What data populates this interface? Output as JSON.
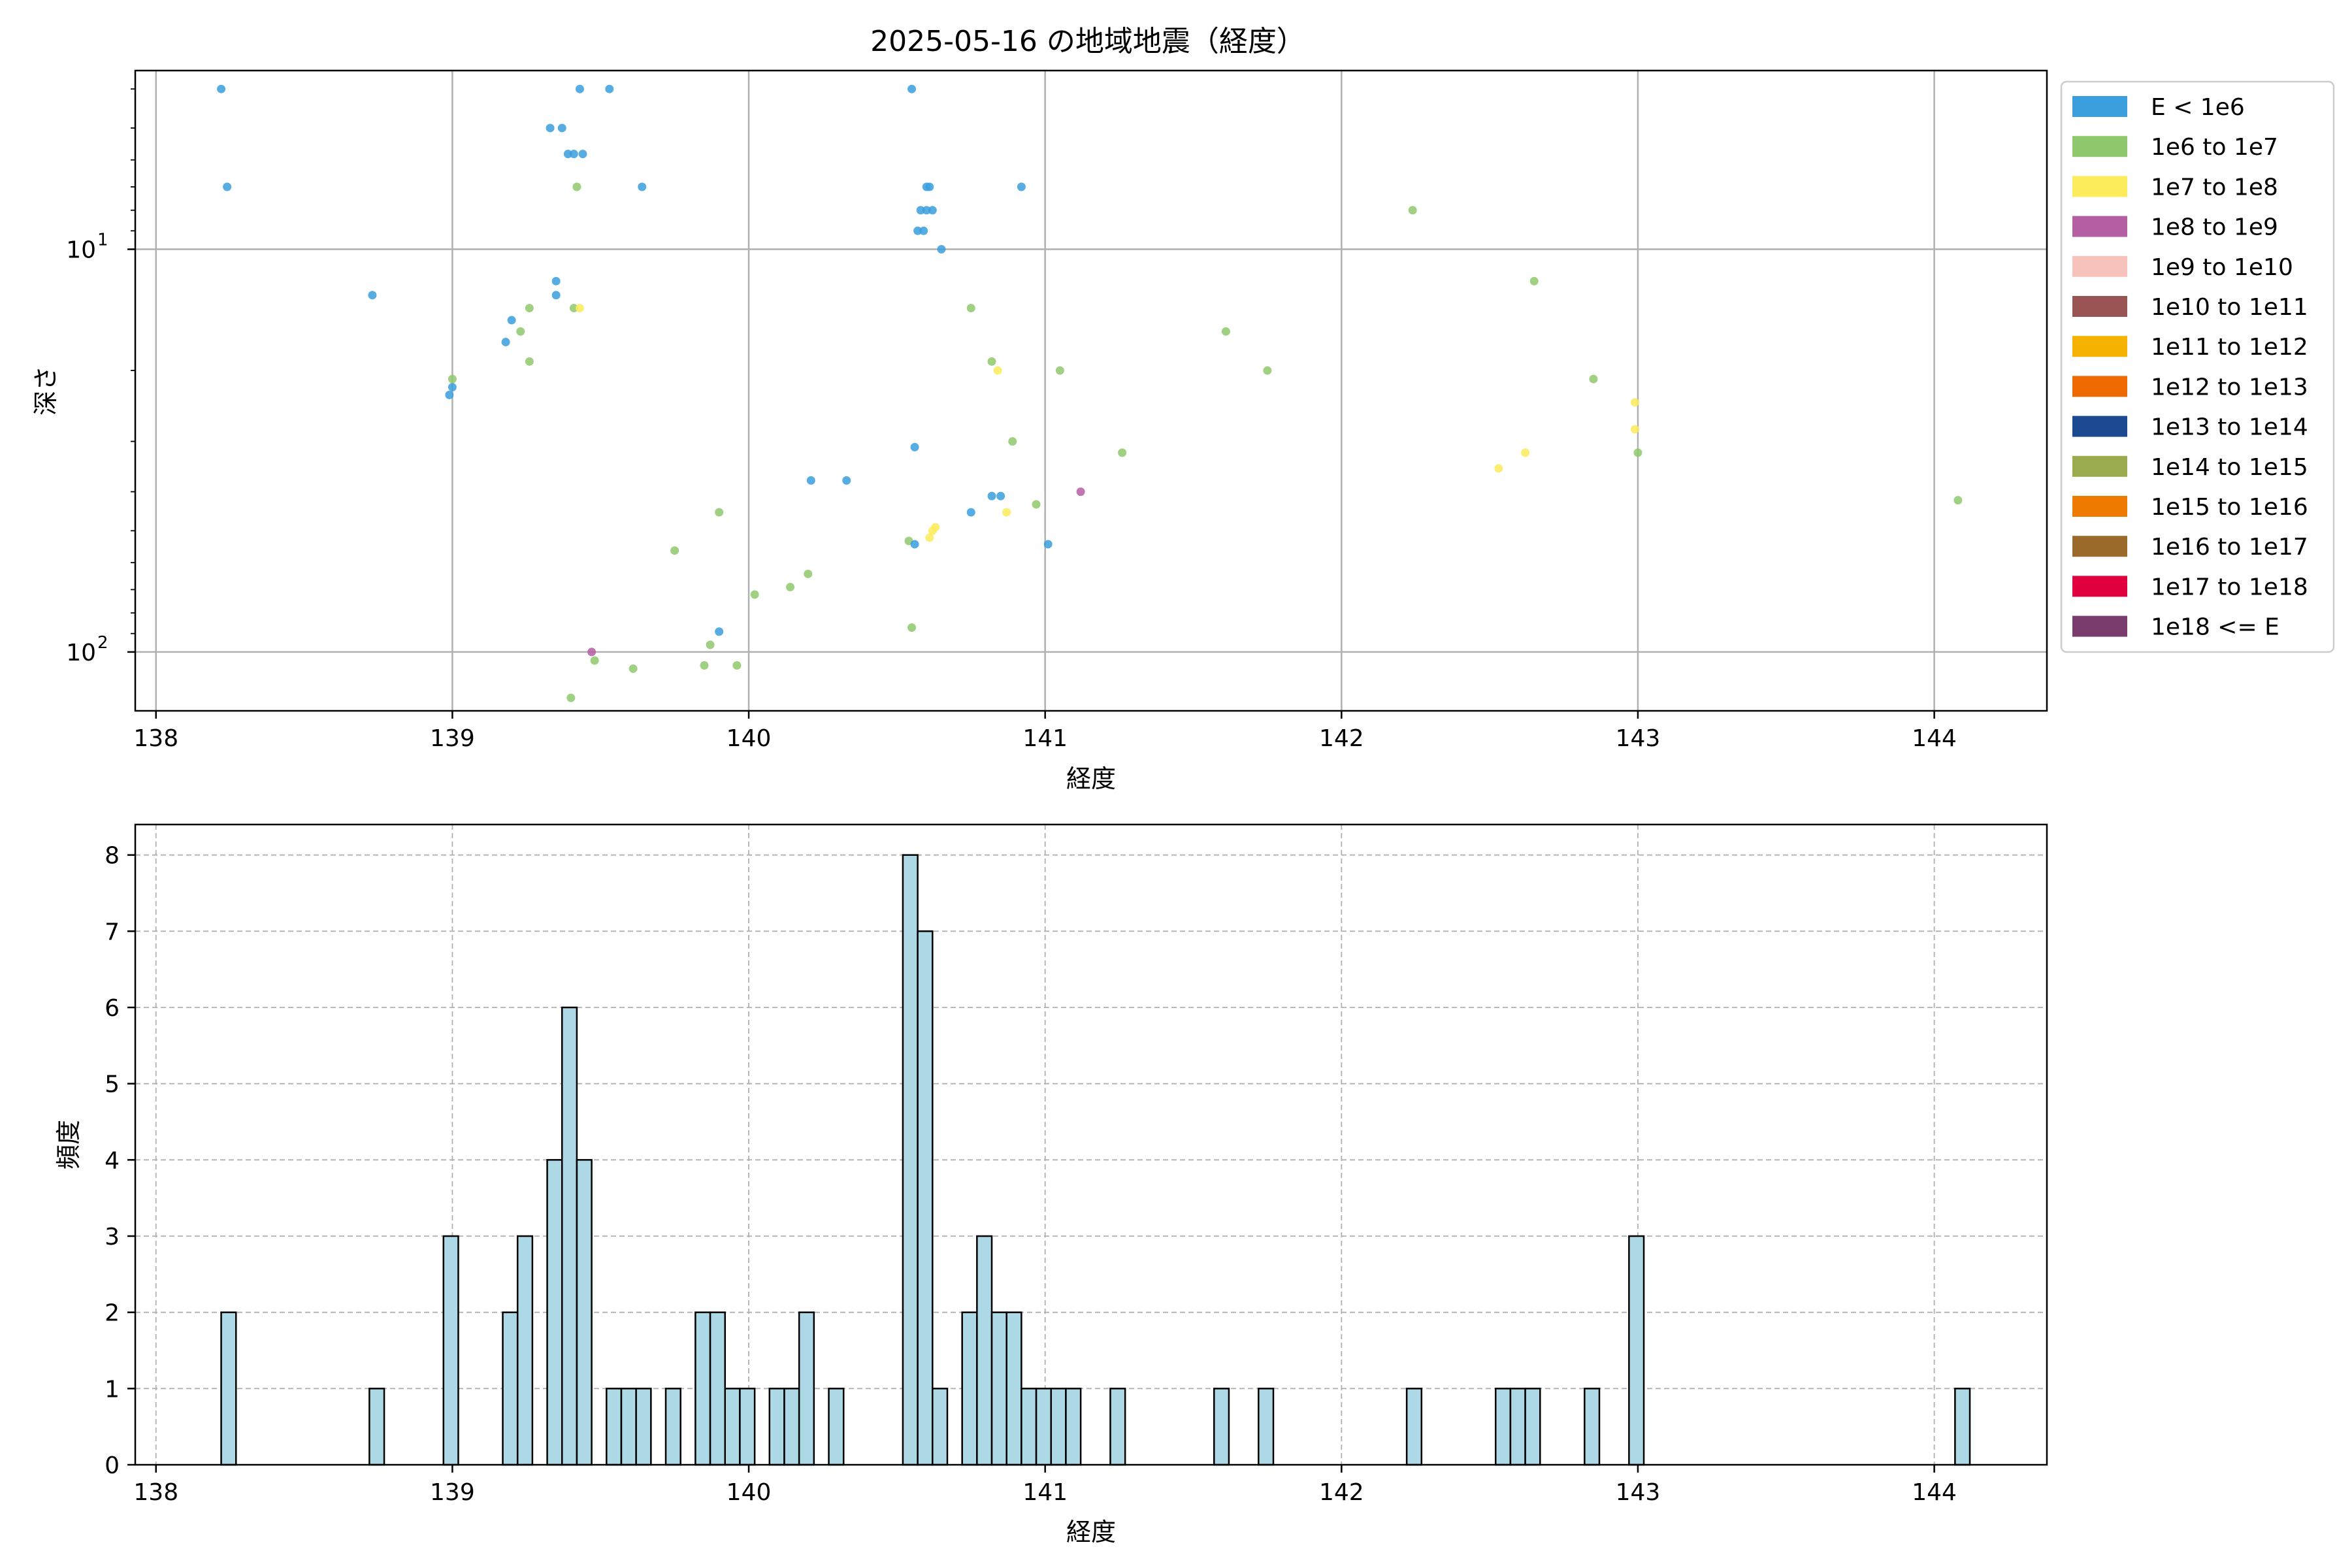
{
  "figure_title": "2025-05-16 の地域地震（経度）",
  "legend": {
    "entries": [
      {
        "label": "E < 1e6",
        "color": "#3a9fdc"
      },
      {
        "label": "1e6 to 1e7",
        "color": "#8fc86c"
      },
      {
        "label": "1e7 to 1e8",
        "color": "#fceb5b"
      },
      {
        "label": "1e8 to 1e9",
        "color": "#b45ea3"
      },
      {
        "label": "1e9 to 1e10",
        "color": "#f6c2bb"
      },
      {
        "label": "1e10 to 1e11",
        "color": "#985452"
      },
      {
        "label": "1e11 to 1e12",
        "color": "#f5b200"
      },
      {
        "label": "1e12 to 1e13",
        "color": "#ee6a00"
      },
      {
        "label": "1e13 to 1e14",
        "color": "#1c4a90"
      },
      {
        "label": "1e14 to 1e15",
        "color": "#9aab4d"
      },
      {
        "label": "1e15 to 1e16",
        "color": "#ee7b00"
      },
      {
        "label": "1e16 to 1e17",
        "color": "#9a6a2a"
      },
      {
        "label": "1e17 to 1e18",
        "color": "#e0003e"
      },
      {
        "label": "1e18 <= E",
        "color": "#7a3c6c"
      }
    ]
  },
  "chart_data": [
    {
      "type": "scatter",
      "xlabel": "経度",
      "ylabel": "深さ",
      "yscale": "log",
      "yinverted": true,
      "xlim": [
        137.93,
        144.38
      ],
      "ylim": [
        3.6,
        140
      ],
      "xticks": [
        {
          "value": 138,
          "label": "138"
        },
        {
          "value": 139,
          "label": "139"
        },
        {
          "value": 140,
          "label": "140"
        },
        {
          "value": 141,
          "label": "141"
        },
        {
          "value": 142,
          "label": "142"
        },
        {
          "value": 143,
          "label": "143"
        },
        {
          "value": 144,
          "label": "144"
        }
      ],
      "yticks": [
        {
          "value": 10,
          "label": "10",
          "exp": "1"
        },
        {
          "value": 100,
          "label": "10",
          "exp": "2"
        }
      ],
      "grid": true,
      "legend_position": "outside-right",
      "points": [
        {
          "x": 138.22,
          "y": 4.0,
          "c": 0
        },
        {
          "x": 138.24,
          "y": 7.0,
          "c": 0
        },
        {
          "x": 138.73,
          "y": 13.0,
          "c": 0
        },
        {
          "x": 138.99,
          "y": 23.0,
          "c": 0
        },
        {
          "x": 139.0,
          "y": 22.0,
          "c": 0
        },
        {
          "x": 139.0,
          "y": 21.0,
          "c": 1
        },
        {
          "x": 139.18,
          "y": 17.0,
          "c": 0
        },
        {
          "x": 139.2,
          "y": 15.0,
          "c": 0
        },
        {
          "x": 139.23,
          "y": 16.0,
          "c": 1
        },
        {
          "x": 139.26,
          "y": 14.0,
          "c": 1
        },
        {
          "x": 139.26,
          "y": 19.0,
          "c": 1
        },
        {
          "x": 139.33,
          "y": 5.0,
          "c": 0
        },
        {
          "x": 139.35,
          "y": 12.0,
          "c": 0
        },
        {
          "x": 139.35,
          "y": 13.0,
          "c": 0
        },
        {
          "x": 139.37,
          "y": 5.0,
          "c": 0
        },
        {
          "x": 139.39,
          "y": 5.8,
          "c": 0
        },
        {
          "x": 139.41,
          "y": 5.8,
          "c": 0
        },
        {
          "x": 139.41,
          "y": 14.0,
          "c": 1
        },
        {
          "x": 139.42,
          "y": 7.0,
          "c": 1
        },
        {
          "x": 139.43,
          "y": 14.0,
          "c": 2
        },
        {
          "x": 139.43,
          "y": 4.0,
          "c": 0
        },
        {
          "x": 139.44,
          "y": 5.8,
          "c": 0
        },
        {
          "x": 139.4,
          "y": 130.0,
          "c": 1
        },
        {
          "x": 139.47,
          "y": 100.0,
          "c": 3
        },
        {
          "x": 139.48,
          "y": 105.0,
          "c": 1
        },
        {
          "x": 139.53,
          "y": 4.0,
          "c": 0
        },
        {
          "x": 139.61,
          "y": 110.0,
          "c": 1
        },
        {
          "x": 139.64,
          "y": 7.0,
          "c": 0
        },
        {
          "x": 139.75,
          "y": 56.0,
          "c": 1
        },
        {
          "x": 139.85,
          "y": 108.0,
          "c": 1
        },
        {
          "x": 139.87,
          "y": 96.0,
          "c": 1
        },
        {
          "x": 139.9,
          "y": 89.0,
          "c": 0
        },
        {
          "x": 139.9,
          "y": 45.0,
          "c": 1
        },
        {
          "x": 139.96,
          "y": 108.0,
          "c": 1
        },
        {
          "x": 140.02,
          "y": 72.0,
          "c": 1
        },
        {
          "x": 140.14,
          "y": 69.0,
          "c": 1
        },
        {
          "x": 140.2,
          "y": 64.0,
          "c": 1
        },
        {
          "x": 140.21,
          "y": 37.5,
          "c": 0
        },
        {
          "x": 140.33,
          "y": 37.5,
          "c": 0
        },
        {
          "x": 140.54,
          "y": 53.0,
          "c": 1
        },
        {
          "x": 140.55,
          "y": 4.0,
          "c": 0
        },
        {
          "x": 140.55,
          "y": 87.0,
          "c": 1
        },
        {
          "x": 140.56,
          "y": 31.0,
          "c": 0
        },
        {
          "x": 140.56,
          "y": 54.0,
          "c": 0
        },
        {
          "x": 140.57,
          "y": 9.0,
          "c": 0
        },
        {
          "x": 140.58,
          "y": 8.0,
          "c": 0
        },
        {
          "x": 140.59,
          "y": 9.0,
          "c": 0
        },
        {
          "x": 140.6,
          "y": 8.0,
          "c": 0
        },
        {
          "x": 140.6,
          "y": 7.0,
          "c": 0
        },
        {
          "x": 140.61,
          "y": 52.0,
          "c": 2
        },
        {
          "x": 140.62,
          "y": 50.0,
          "c": 2
        },
        {
          "x": 140.63,
          "y": 49.0,
          "c": 2
        },
        {
          "x": 140.61,
          "y": 7.0,
          "c": 0
        },
        {
          "x": 140.62,
          "y": 8.0,
          "c": 0
        },
        {
          "x": 140.65,
          "y": 10.0,
          "c": 0
        },
        {
          "x": 140.75,
          "y": 14.0,
          "c": 1
        },
        {
          "x": 140.75,
          "y": 45.0,
          "c": 0
        },
        {
          "x": 140.82,
          "y": 19.0,
          "c": 1
        },
        {
          "x": 140.82,
          "y": 41.0,
          "c": 0
        },
        {
          "x": 140.84,
          "y": 20.0,
          "c": 2
        },
        {
          "x": 140.85,
          "y": 41.0,
          "c": 0
        },
        {
          "x": 140.87,
          "y": 45.0,
          "c": 2
        },
        {
          "x": 140.89,
          "y": 30.0,
          "c": 1
        },
        {
          "x": 140.92,
          "y": 7.0,
          "c": 0
        },
        {
          "x": 140.97,
          "y": 43.0,
          "c": 1
        },
        {
          "x": 141.01,
          "y": 54.0,
          "c": 0
        },
        {
          "x": 141.05,
          "y": 20.0,
          "c": 1
        },
        {
          "x": 141.12,
          "y": 40.0,
          "c": 3
        },
        {
          "x": 141.26,
          "y": 32.0,
          "c": 1
        },
        {
          "x": 141.61,
          "y": 16.0,
          "c": 1
        },
        {
          "x": 141.75,
          "y": 20.0,
          "c": 1
        },
        {
          "x": 142.24,
          "y": 8.0,
          "c": 1
        },
        {
          "x": 142.53,
          "y": 35.0,
          "c": 2
        },
        {
          "x": 142.62,
          "y": 32.0,
          "c": 2
        },
        {
          "x": 142.65,
          "y": 12.0,
          "c": 1
        },
        {
          "x": 142.85,
          "y": 21.0,
          "c": 1
        },
        {
          "x": 142.99,
          "y": 24.0,
          "c": 2
        },
        {
          "x": 142.99,
          "y": 28.0,
          "c": 2
        },
        {
          "x": 143.0,
          "y": 32.0,
          "c": 1
        },
        {
          "x": 144.08,
          "y": 42.0,
          "c": 1
        }
      ]
    },
    {
      "type": "bar",
      "subtype": "histogram",
      "xlabel": "経度",
      "ylabel": "頻度",
      "xlim": [
        137.93,
        144.38
      ],
      "ylim": [
        0,
        8.4
      ],
      "bin_width": 0.05,
      "color": "#add8e6",
      "edgecolor": "#000000",
      "grid": "dashed",
      "xticks": [
        {
          "value": 138,
          "label": "138"
        },
        {
          "value": 139,
          "label": "139"
        },
        {
          "value": 140,
          "label": "140"
        },
        {
          "value": 141,
          "label": "141"
        },
        {
          "value": 142,
          "label": "142"
        },
        {
          "value": 143,
          "label": "143"
        },
        {
          "value": 144,
          "label": "144"
        }
      ],
      "yticks": [
        {
          "value": 0,
          "label": "0"
        },
        {
          "value": 1,
          "label": "1"
        },
        {
          "value": 2,
          "label": "2"
        },
        {
          "value": 3,
          "label": "3"
        },
        {
          "value": 4,
          "label": "4"
        },
        {
          "value": 5,
          "label": "5"
        },
        {
          "value": 6,
          "label": "6"
        },
        {
          "value": 7,
          "label": "7"
        },
        {
          "value": 8,
          "label": "8"
        }
      ],
      "bins": [
        {
          "x0": 138.22,
          "count": 2
        },
        {
          "x0": 138.72,
          "count": 1
        },
        {
          "x0": 138.97,
          "count": 3
        },
        {
          "x0": 139.17,
          "count": 2
        },
        {
          "x0": 139.22,
          "count": 3
        },
        {
          "x0": 139.32,
          "count": 4
        },
        {
          "x0": 139.37,
          "count": 6
        },
        {
          "x0": 139.42,
          "count": 4
        },
        {
          "x0": 139.52,
          "count": 1
        },
        {
          "x0": 139.57,
          "count": 1
        },
        {
          "x0": 139.62,
          "count": 1
        },
        {
          "x0": 139.72,
          "count": 1
        },
        {
          "x0": 139.82,
          "count": 2
        },
        {
          "x0": 139.87,
          "count": 2
        },
        {
          "x0": 139.92,
          "count": 1
        },
        {
          "x0": 139.97,
          "count": 1
        },
        {
          "x0": 140.07,
          "count": 1
        },
        {
          "x0": 140.12,
          "count": 1
        },
        {
          "x0": 140.17,
          "count": 2
        },
        {
          "x0": 140.27,
          "count": 1
        },
        {
          "x0": 140.52,
          "count": 8
        },
        {
          "x0": 140.57,
          "count": 7
        },
        {
          "x0": 140.62,
          "count": 1
        },
        {
          "x0": 140.72,
          "count": 2
        },
        {
          "x0": 140.77,
          "count": 3
        },
        {
          "x0": 140.82,
          "count": 2
        },
        {
          "x0": 140.87,
          "count": 2
        },
        {
          "x0": 140.92,
          "count": 1
        },
        {
          "x0": 140.97,
          "count": 1
        },
        {
          "x0": 141.02,
          "count": 1
        },
        {
          "x0": 141.07,
          "count": 1
        },
        {
          "x0": 141.22,
          "count": 1
        },
        {
          "x0": 141.57,
          "count": 1
        },
        {
          "x0": 141.72,
          "count": 1
        },
        {
          "x0": 142.22,
          "count": 1
        },
        {
          "x0": 142.52,
          "count": 1
        },
        {
          "x0": 142.57,
          "count": 1
        },
        {
          "x0": 142.62,
          "count": 1
        },
        {
          "x0": 142.82,
          "count": 1
        },
        {
          "x0": 142.97,
          "count": 3
        },
        {
          "x0": 144.07,
          "count": 1
        }
      ]
    }
  ]
}
